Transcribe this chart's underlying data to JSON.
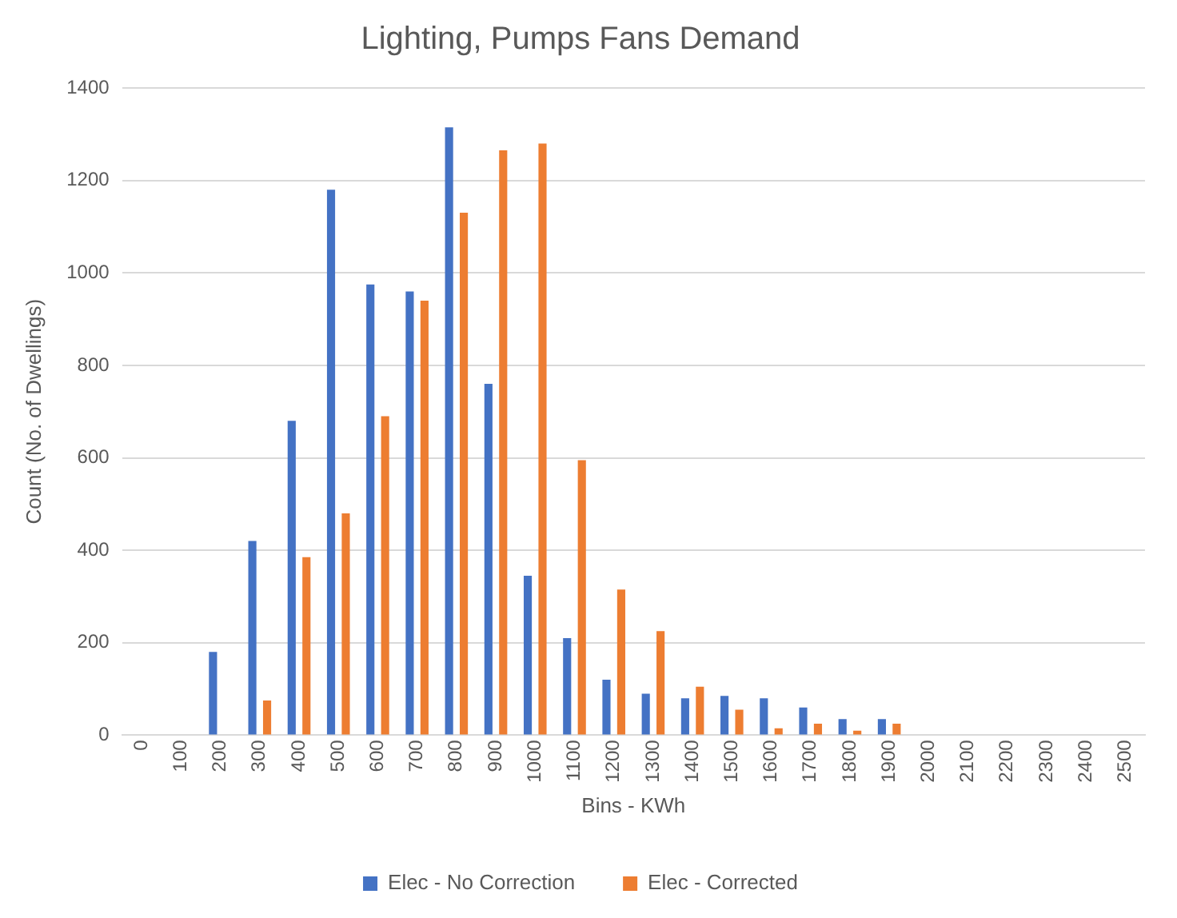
{
  "chart_data": {
    "type": "bar",
    "title": "Lighting, Pumps Fans Demand",
    "xlabel": "Bins - KWh",
    "ylabel": "Count (No. of Dwellings)",
    "categories": [
      "0",
      "100",
      "200",
      "300",
      "400",
      "500",
      "600",
      "700",
      "800",
      "900",
      "1000",
      "1100",
      "1200",
      "1300",
      "1400",
      "1500",
      "1600",
      "1700",
      "1800",
      "1900",
      "2000",
      "2100",
      "2200",
      "2300",
      "2400",
      "2500"
    ],
    "series": [
      {
        "name": "Elec - No Correction",
        "color": "#4472c4",
        "values": [
          0,
          0,
          180,
          420,
          680,
          1180,
          975,
          960,
          1315,
          760,
          345,
          210,
          120,
          90,
          80,
          85,
          80,
          60,
          35,
          35,
          0,
          0,
          0,
          0,
          0,
          0
        ]
      },
      {
        "name": "Elec - Corrected",
        "color": "#ed7d31",
        "values": [
          0,
          0,
          0,
          75,
          385,
          480,
          690,
          940,
          1130,
          1265,
          1280,
          595,
          315,
          225,
          105,
          55,
          15,
          25,
          10,
          25,
          0,
          0,
          0,
          0,
          0,
          0
        ]
      }
    ],
    "ylim": [
      0,
      1400
    ],
    "yticks": [
      0,
      200,
      400,
      600,
      800,
      1000,
      1200,
      1400
    ],
    "grid": "y",
    "legend": "bottom"
  }
}
